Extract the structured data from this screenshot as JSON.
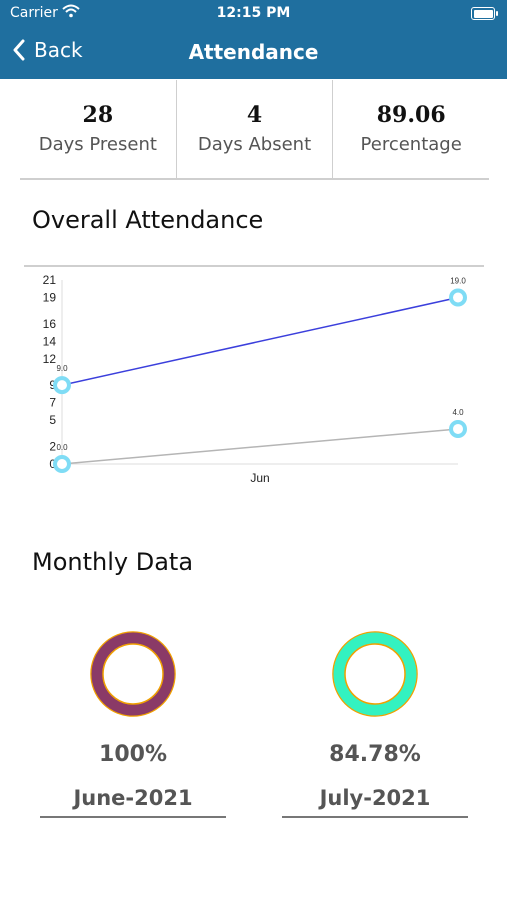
{
  "status_bar": {
    "carrier": "Carrier",
    "time": "12:15 PM"
  },
  "nav": {
    "back_label": "Back",
    "title": "Attendance"
  },
  "stats": [
    {
      "value": "28",
      "label": "Days Present"
    },
    {
      "value": "4",
      "label": "Days Absent"
    },
    {
      "value": "89.06",
      "label": "Percentage"
    }
  ],
  "sections": {
    "overall": "Overall Attendance",
    "monthly": "Monthly Data"
  },
  "chart_data": {
    "type": "line",
    "y_ticks": [
      "21",
      "19",
      "16",
      "14",
      "12",
      "9",
      "7",
      "5",
      "2",
      "0"
    ],
    "ylim": [
      0,
      21
    ],
    "x_categories": [
      "",
      "Jun"
    ],
    "series": [
      {
        "color": "#3b3fdc",
        "x": [
          0,
          1
        ],
        "values": [
          9.0,
          19.0
        ],
        "data_labels": [
          "9.0",
          "19.0"
        ]
      },
      {
        "color": "#b5b5b5",
        "x": [
          0,
          1
        ],
        "values": [
          0.0,
          4.0
        ],
        "data_labels": [
          "0.0",
          "4.0"
        ]
      }
    ],
    "marker_color": "#7fdcf5"
  },
  "monthly": [
    {
      "percent": "100%",
      "month": "June-2021",
      "ring_color": "#8a3a67",
      "border_color": "#f0a000"
    },
    {
      "percent": "84.78%",
      "month": "July-2021",
      "ring_color": "#33f2c0",
      "border_color": "#f0a000"
    }
  ]
}
